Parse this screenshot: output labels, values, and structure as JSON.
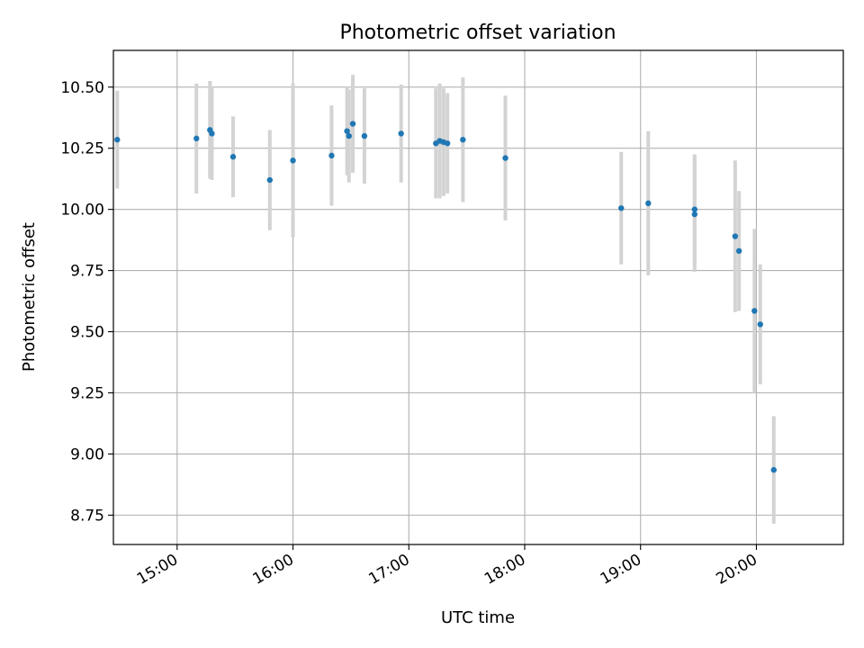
{
  "chart_data": {
    "type": "scatter",
    "title": "Photometric offset variation",
    "xlabel": "UTC time",
    "ylabel": "Photometric offset",
    "x_is_time": true,
    "xlim": [
      "14:27",
      "20:45"
    ],
    "ylim": [
      8.63,
      10.65
    ],
    "x_ticks": [
      "15:00",
      "16:00",
      "17:00",
      "18:00",
      "19:00",
      "20:00"
    ],
    "y_ticks": [
      "8.75",
      "9.00",
      "9.25",
      "9.50",
      "9.75",
      "10.00",
      "10.25",
      "10.50"
    ],
    "grid": true,
    "colors": {
      "point": "#1f77b4",
      "errorbar": "#d3d3d3",
      "grid": "#b0b0b0"
    },
    "points": [
      {
        "time": "14:29",
        "y": 10.285,
        "yerr": 0.2
      },
      {
        "time": "15:10",
        "y": 10.29,
        "yerr": 0.225
      },
      {
        "time": "15:17",
        "y": 10.325,
        "yerr": 0.2
      },
      {
        "time": "15:18",
        "y": 10.31,
        "yerr": 0.19
      },
      {
        "time": "15:29",
        "y": 10.215,
        "yerr": 0.165
      },
      {
        "time": "15:48",
        "y": 10.12,
        "yerr": 0.205
      },
      {
        "time": "16:00",
        "y": 10.2,
        "yerr": 0.315
      },
      {
        "time": "16:20",
        "y": 10.22,
        "yerr": 0.205
      },
      {
        "time": "16:28",
        "y": 10.32,
        "yerr": 0.18
      },
      {
        "time": "16:29",
        "y": 10.3,
        "yerr": 0.19
      },
      {
        "time": "16:31",
        "y": 10.35,
        "yerr": 0.2
      },
      {
        "time": "16:37",
        "y": 10.3,
        "yerr": 0.195
      },
      {
        "time": "16:56",
        "y": 10.31,
        "yerr": 0.2
      },
      {
        "time": "17:14",
        "y": 10.27,
        "yerr": 0.225
      },
      {
        "time": "17:16",
        "y": 10.28,
        "yerr": 0.235
      },
      {
        "time": "17:18",
        "y": 10.275,
        "yerr": 0.22
      },
      {
        "time": "17:20",
        "y": 10.27,
        "yerr": 0.205
      },
      {
        "time": "17:28",
        "y": 10.285,
        "yerr": 0.255
      },
      {
        "time": "17:50",
        "y": 10.21,
        "yerr": 0.255
      },
      {
        "time": "18:50",
        "y": 10.005,
        "yerr": 0.23
      },
      {
        "time": "19:04",
        "y": 10.025,
        "yerr": 0.295
      },
      {
        "time": "19:28",
        "y": 10.0,
        "yerr": 0.225
      },
      {
        "time": "19:28",
        "y": 9.98,
        "yerr": 0.235
      },
      {
        "time": "19:49",
        "y": 9.89,
        "yerr": 0.31
      },
      {
        "time": "19:51",
        "y": 9.83,
        "yerr": 0.245
      },
      {
        "time": "19:59",
        "y": 9.585,
        "yerr": 0.335
      },
      {
        "time": "20:02",
        "y": 9.53,
        "yerr": 0.245
      },
      {
        "time": "20:09",
        "y": 8.935,
        "yerr": 0.22
      }
    ]
  }
}
